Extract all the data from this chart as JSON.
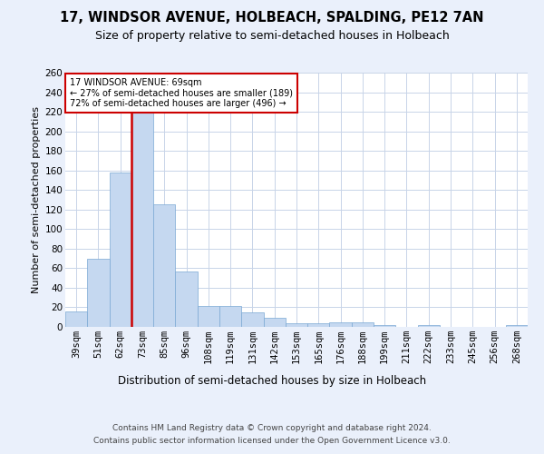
{
  "title": "17, WINDSOR AVENUE, HOLBEACH, SPALDING, PE12 7AN",
  "subtitle": "Size of property relative to semi-detached houses in Holbeach",
  "xlabel": "Distribution of semi-detached houses by size in Holbeach",
  "ylabel": "Number of semi-detached properties",
  "categories": [
    "39sqm",
    "51sqm",
    "62sqm",
    "73sqm",
    "85sqm",
    "96sqm",
    "108sqm",
    "119sqm",
    "131sqm",
    "142sqm",
    "153sqm",
    "165sqm",
    "176sqm",
    "188sqm",
    "199sqm",
    "211sqm",
    "222sqm",
    "233sqm",
    "245sqm",
    "256sqm",
    "268sqm"
  ],
  "values": [
    16,
    70,
    158,
    219,
    125,
    57,
    21,
    21,
    15,
    9,
    4,
    4,
    5,
    5,
    2,
    0,
    2,
    0,
    0,
    0,
    2
  ],
  "bar_color": "#c5d8f0",
  "bar_edge_color": "#7aa8d4",
  "property_label": "17 WINDSOR AVENUE: 69sqm",
  "pct_smaller": 27,
  "pct_larger": 72,
  "n_smaller": 189,
  "n_larger": 496,
  "vline_color": "#cc0000",
  "annotation_box_color": "#cc0000",
  "ylim": [
    0,
    260
  ],
  "yticks": [
    0,
    20,
    40,
    60,
    80,
    100,
    120,
    140,
    160,
    180,
    200,
    220,
    240,
    260
  ],
  "bg_color": "#eaf0fb",
  "plot_bg_color": "#ffffff",
  "grid_color": "#c8d4e8",
  "footer": "Contains HM Land Registry data © Crown copyright and database right 2024.\nContains public sector information licensed under the Open Government Licence v3.0.",
  "title_fontsize": 10.5,
  "subtitle_fontsize": 9,
  "xlabel_fontsize": 8.5,
  "ylabel_fontsize": 8,
  "tick_fontsize": 7.5,
  "footer_fontsize": 6.5,
  "vline_x": 2.5
}
